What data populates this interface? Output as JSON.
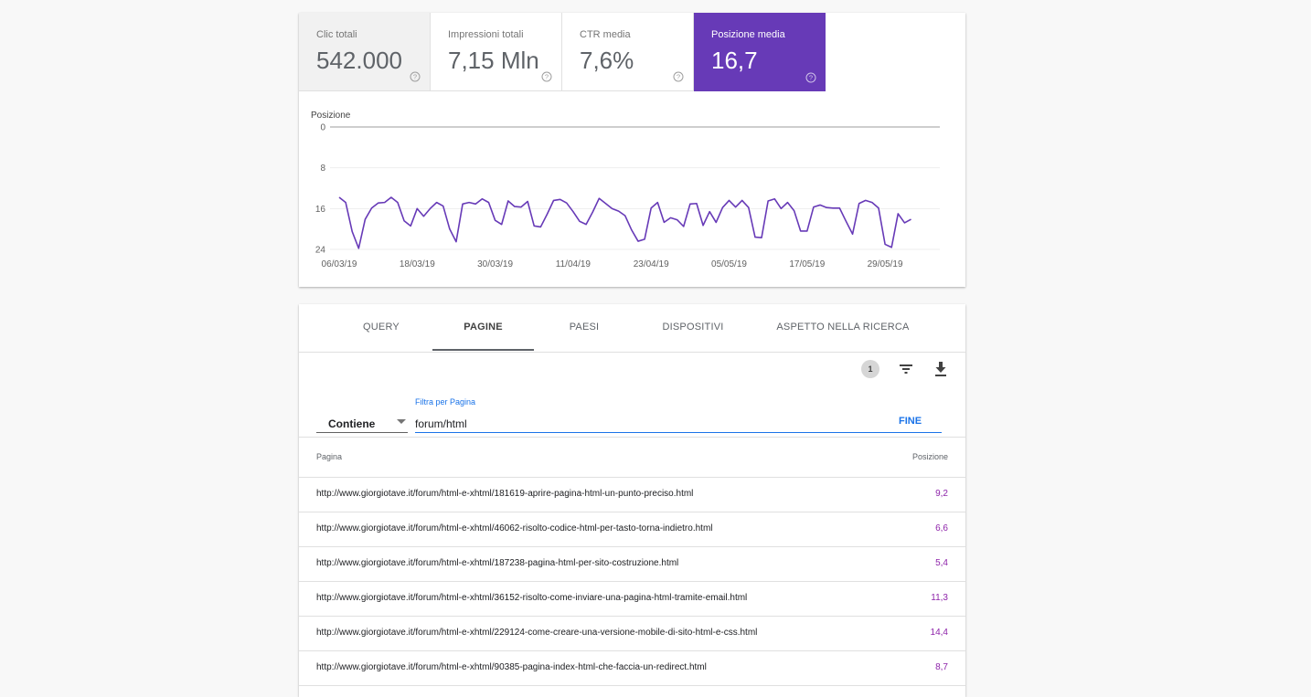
{
  "metrics": [
    {
      "label": "Clic totali",
      "value": "542.000",
      "state": "light"
    },
    {
      "label": "Impressioni totali",
      "value": "7,15 Mln",
      "state": "white"
    },
    {
      "label": "CTR media",
      "value": "7,6%",
      "state": "white"
    },
    {
      "label": "Posizione media",
      "value": "16,7",
      "state": "active"
    }
  ],
  "colors": {
    "accent": "#673ab7",
    "link_blue": "#1a73e8",
    "position_text": "#8e24aa"
  },
  "chart_data": {
    "type": "line",
    "ylabel": "Posizione",
    "y_inverted": true,
    "ylim": [
      0,
      24
    ],
    "y_ticks": [
      "0",
      "8",
      "16",
      "24"
    ],
    "x_tick_labels": [
      "06/03/19",
      "18/03/19",
      "30/03/19",
      "11/04/19",
      "23/04/19",
      "05/05/19",
      "17/05/19",
      "29/05/19"
    ],
    "x_range_days": [
      0,
      92
    ],
    "series": [
      {
        "color": "#673ab7",
        "values": [
          13.8,
          14.8,
          20.5,
          23.8,
          18.1,
          15.9,
          14.9,
          14.8,
          13.8,
          14.8,
          18.4,
          19.4,
          16.0,
          17.5,
          16.0,
          14.8,
          15.5,
          20.0,
          22.5,
          15.1,
          14.8,
          15.1,
          14.1,
          14.8,
          18.3,
          19.1,
          14.5,
          15.6,
          15.7,
          14.6,
          19.4,
          19.6,
          17.1,
          14.4,
          14.2,
          14.9,
          16.6,
          18.5,
          19.1,
          16.7,
          14.0,
          15.0,
          16.0,
          16.5,
          17.4,
          20.2,
          22.4,
          22.0,
          15.9,
          14.8,
          18.7,
          17.8,
          18.2,
          19.5,
          15.1,
          15.0,
          19.3,
          16.6,
          18.7,
          15.8,
          14.4,
          15.7,
          14.4,
          15.8,
          21.6,
          21.7,
          14.5,
          14.1,
          16.0,
          14.8,
          16.4,
          20.4,
          20.4,
          15.7,
          15.3,
          15.8,
          15.9,
          15.9,
          18.5,
          21.0,
          15.0,
          14.4,
          14.8,
          15.9,
          23.0,
          23.6,
          17.0,
          18.8,
          18.1
        ]
      }
    ]
  },
  "tabs": [
    "QUERY",
    "PAGINE",
    "PAESI",
    "DISPOSITIVI",
    "ASPETTO NELLA RICERCA"
  ],
  "selected_tab": "PAGINE",
  "toolbar": {
    "filter_count": "1",
    "filter_icon": "filter-list-icon",
    "download_icon": "download-icon"
  },
  "filter": {
    "operator": "Contiene",
    "field_label": "Filtra per Pagina",
    "value": "forum/html",
    "done_label": "FINE"
  },
  "table": {
    "columns": [
      "Pagina",
      "Posizione"
    ],
    "rows": [
      {
        "url": "http://www.giorgiotave.it/forum/html-e-xhtml/181619-aprire-pagina-html-un-punto-preciso.html",
        "position": "9,2"
      },
      {
        "url": "http://www.giorgiotave.it/forum/html-e-xhtml/46062-risolto-codice-html-per-tasto-torna-indietro.html",
        "position": "6,6"
      },
      {
        "url": "http://www.giorgiotave.it/forum/html-e-xhtml/187238-pagina-html-per-sito-costruzione.html",
        "position": "5,4"
      },
      {
        "url": "http://www.giorgiotave.it/forum/html-e-xhtml/36152-risolto-come-inviare-una-pagina-html-tramite-email.html",
        "position": "11,3"
      },
      {
        "url": "http://www.giorgiotave.it/forum/html-e-xhtml/229124-come-creare-una-versione-mobile-di-sito-html-e-css.html",
        "position": "14,4"
      },
      {
        "url": "http://www.giorgiotave.it/forum/html-e-xhtml/90385-pagina-index-html-che-faccia-un-redirect.html",
        "position": "8,7"
      }
    ]
  }
}
